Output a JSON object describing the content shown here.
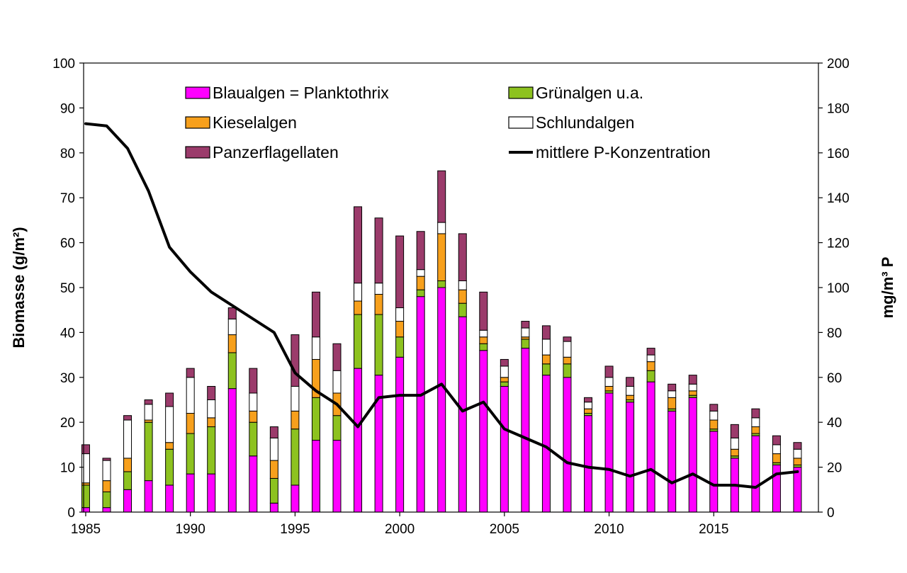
{
  "chart_data": {
    "type": "bar",
    "stacked": true,
    "x_ticks": [
      "1985",
      "1990",
      "1995",
      "2000",
      "2005",
      "2010",
      "2015"
    ],
    "y_left": {
      "label": "Biomasse (g/m²)",
      "range": [
        0,
        100
      ],
      "ticks": [
        "0",
        "10",
        "20",
        "30",
        "40",
        "50",
        "60",
        "70",
        "80",
        "90",
        "100"
      ]
    },
    "y_right": {
      "label": "mg/m³ P",
      "range": [
        0,
        200
      ],
      "ticks": [
        "0",
        "20",
        "40",
        "60",
        "80",
        "100",
        "120",
        "140",
        "160",
        "180",
        "200"
      ]
    },
    "grid": false,
    "legend": {
      "placement": "top"
    },
    "years": [
      1985,
      1986,
      1987,
      1988,
      1989,
      1990,
      1991,
      1992,
      1993,
      1994,
      1995,
      1996,
      1997,
      1998,
      1999,
      2000,
      2001,
      2002,
      2003,
      2004,
      2005,
      2006,
      2007,
      2008,
      2009,
      2010,
      2011,
      2012,
      2013,
      2014,
      2015,
      2016,
      2017,
      2018,
      2019
    ],
    "series": [
      {
        "name": "Blaualgen = Planktothrix",
        "color": "#FF00FF",
        "values": [
          1,
          1,
          5,
          7,
          6,
          8.5,
          8.5,
          27.5,
          12.5,
          2,
          6,
          16,
          16,
          32,
          30.5,
          34.5,
          48,
          50,
          43.5,
          36,
          28,
          36.5,
          30.5,
          30,
          21.5,
          26.5,
          24.5,
          29,
          22.5,
          25.5,
          18,
          12,
          17,
          10.5,
          10
        ]
      },
      {
        "name": "Grünalgen u.a.",
        "color": "#8DC21F",
        "values": [
          5,
          3.5,
          4,
          13,
          8,
          9,
          10.5,
          8,
          7.5,
          5.5,
          12.5,
          9.5,
          5.5,
          12,
          13.5,
          4.5,
          1.5,
          1.5,
          3,
          1.5,
          1,
          2,
          2.5,
          3,
          0.5,
          0.5,
          0.5,
          2.5,
          0.5,
          0.5,
          0.5,
          0.5,
          0.5,
          0.5,
          0.5
        ]
      },
      {
        "name": "Kieselalgen",
        "color": "#F7A01C",
        "values": [
          0.5,
          2.5,
          3,
          0.5,
          1.5,
          4.5,
          2,
          4,
          2.5,
          4,
          4,
          8.5,
          5,
          3,
          4.5,
          3.5,
          3,
          10.5,
          3,
          1.5,
          1,
          0.5,
          2,
          1.5,
          1,
          1,
          1,
          2,
          2.5,
          1,
          2,
          1.5,
          1.5,
          2,
          1.5
        ]
      },
      {
        "name": "Schlundalgen",
        "color": "#FFFFFF",
        "values": [
          6.5,
          4.5,
          8.5,
          3.5,
          8,
          8,
          4,
          3.5,
          4,
          5,
          5.5,
          5,
          5,
          4,
          2.5,
          3,
          1.5,
          2.5,
          2,
          1.5,
          2.5,
          2,
          3.5,
          3.5,
          1.5,
          2,
          2,
          1.5,
          1.5,
          1.5,
          2,
          2.5,
          2,
          2,
          2
        ]
      },
      {
        "name": "Panzerflagellaten",
        "color": "#9B3B6B",
        "values": [
          2,
          0.5,
          1,
          1,
          3,
          2,
          3,
          2.5,
          5.5,
          2.5,
          11.5,
          10,
          6,
          17,
          14.5,
          16,
          8.5,
          11.5,
          10.5,
          8.5,
          1.5,
          1.5,
          3,
          1,
          1,
          2.5,
          2,
          1.5,
          1.5,
          2,
          1.5,
          3,
          2,
          2,
          1.5
        ]
      }
    ],
    "line": {
      "name": "mittlere P-Konzentration",
      "axis": "right",
      "color": "#000000",
      "values": [
        173,
        172,
        162,
        143,
        118,
        107,
        98,
        92,
        86,
        80,
        62,
        54,
        48,
        38,
        51,
        52,
        52,
        57,
        45,
        49,
        37,
        33,
        29,
        22,
        20,
        19,
        16,
        19,
        13,
        17,
        12,
        12,
        11,
        17,
        18
      ]
    }
  }
}
